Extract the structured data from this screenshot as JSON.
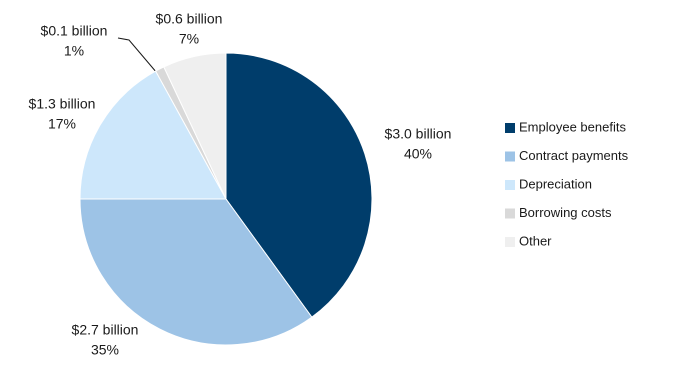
{
  "chart_data": {
    "type": "pie",
    "categories": [
      "Employee benefits",
      "Contract payments",
      "Depreciation",
      "Borrowing costs",
      "Other"
    ],
    "values": [
      40,
      35,
      17,
      1,
      7
    ],
    "value_labels": [
      "40%",
      "35%",
      "17%",
      "1%",
      "7%"
    ],
    "amounts": [
      3.0,
      2.7,
      1.3,
      0.1,
      0.6
    ],
    "amount_labels": [
      "$3.0 billion",
      "$2.7 billion",
      "$1.3 billion",
      "$0.1 billion",
      "$0.6 billion"
    ],
    "colors": [
      "#003d6b",
      "#9dc3e6",
      "#cde7fb",
      "#d9d9d9",
      "#efefef"
    ],
    "legend": "right"
  }
}
